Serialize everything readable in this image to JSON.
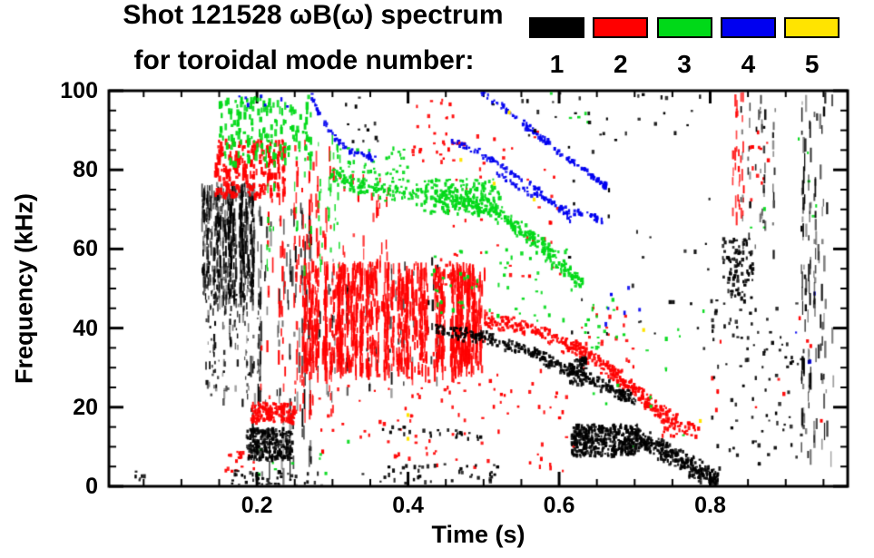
{
  "header": {
    "line1": "Shot 121528 ωB(ω) spectrum",
    "line2": "for toroidal mode number:",
    "legend": [
      {
        "label": "1",
        "color": "#000000"
      },
      {
        "label": "2",
        "color": "#ff0000"
      },
      {
        "label": "3",
        "color": "#00d918"
      },
      {
        "label": "4",
        "color": "#0000f0"
      },
      {
        "label": "5",
        "color": "#ffe400"
      }
    ]
  },
  "chart_data": {
    "type": "scatter",
    "title": "Shot 121528 ωB(ω) spectrum for toroidal mode number: 1-5",
    "xlabel": "Time (s)",
    "ylabel": "Frequency (kHz)",
    "xlim": [
      0.004,
      0.982
    ],
    "ylim": [
      0,
      100
    ],
    "x_major_ticks": [
      0.2,
      0.4,
      0.6,
      0.8
    ],
    "x_major_labels": [
      "0.2",
      "0.4",
      "0.6",
      "0.8"
    ],
    "x_minor_step": 0.05,
    "y_major_ticks": [
      0,
      20,
      40,
      60,
      80,
      100
    ],
    "y_major_labels": [
      "0",
      "20",
      "40",
      "60",
      "80",
      "100"
    ],
    "y_minor_step": 5,
    "grid": false,
    "legend_position": "top-right",
    "modes": {
      "1": "#000000",
      "2": "#ff0000",
      "3": "#00d918",
      "4": "#0000f0",
      "5": "#ffe400"
    },
    "features": [
      {
        "mode": 1,
        "kind": "vstreaks",
        "t": [
          0.128,
          0.195
        ],
        "f": [
          48,
          77
        ],
        "cols": 60,
        "runs": [
          5,
          13
        ],
        "len": [
          3,
          16
        ]
      },
      {
        "mode": 1,
        "kind": "vstreaks",
        "t": [
          0.13,
          0.205
        ],
        "f": [
          22,
          50
        ],
        "cols": 28,
        "runs": [
          2,
          6
        ],
        "len": [
          2,
          10
        ]
      },
      {
        "mode": 1,
        "kind": "vstreaks",
        "t": [
          0.19,
          0.275
        ],
        "f": [
          3,
          72
        ],
        "cols": 26,
        "runs": [
          3,
          8
        ],
        "len": [
          3,
          24
        ]
      },
      {
        "mode": 1,
        "kind": "vstreaks",
        "t": [
          0.28,
          0.46
        ],
        "f": [
          24,
          58
        ],
        "cols": 22,
        "runs": [
          2,
          6
        ],
        "len": [
          3,
          14
        ]
      },
      {
        "mode": 2,
        "kind": "scatter",
        "t": [
          0.143,
          0.235
        ],
        "f": [
          74,
          88
        ],
        "n": 210,
        "tall": true
      },
      {
        "mode": 2,
        "kind": "vstreaks",
        "t": [
          0.195,
          0.3
        ],
        "f": [
          18,
          88
        ],
        "cols": 30,
        "runs": [
          3,
          8
        ],
        "len": [
          4,
          18
        ]
      },
      {
        "mode": 2,
        "kind": "vstreaks",
        "t": [
          0.26,
          0.5
        ],
        "f": [
          30,
          57
        ],
        "cols": 130,
        "runs": [
          5,
          14
        ],
        "len": [
          4,
          20
        ]
      },
      {
        "mode": 2,
        "kind": "vstreaks",
        "t": [
          0.3,
          0.38
        ],
        "f": [
          45,
          80
        ],
        "cols": 12,
        "runs": [
          2,
          5
        ],
        "len": [
          4,
          14
        ]
      },
      {
        "mode": 2,
        "kind": "trace",
        "pts": [
          [
            0.5,
            42.5
          ],
          [
            0.54,
            41
          ],
          [
            0.58,
            38.5
          ],
          [
            0.61,
            36
          ],
          [
            0.64,
            33
          ],
          [
            0.665,
            30
          ],
          [
            0.69,
            26
          ],
          [
            0.71,
            22.5
          ],
          [
            0.73,
            19.5
          ],
          [
            0.755,
            16.5
          ]
        ],
        "w": 2.5,
        "n": 400
      },
      {
        "mode": 2,
        "kind": "scatter",
        "t": [
          0.19,
          0.25
        ],
        "f": [
          16.5,
          21.5
        ],
        "n": 140
      },
      {
        "mode": 2,
        "kind": "scatter",
        "t": [
          0.28,
          0.62
        ],
        "f": [
          4,
          30
        ],
        "n": 95
      },
      {
        "mode": 2,
        "kind": "scatter",
        "t": [
          0.44,
          0.6
        ],
        "f": [
          50,
          90
        ],
        "n": 55
      },
      {
        "mode": 2,
        "kind": "scatter",
        "t": [
          0.4,
          0.46
        ],
        "f": [
          82,
          100
        ],
        "n": 25
      },
      {
        "mode": 2,
        "kind": "scatter",
        "t": [
          0.155,
          0.195
        ],
        "f": [
          4,
          9
        ],
        "n": 18
      },
      {
        "mode": 2,
        "kind": "scatter",
        "t": [
          0.62,
          0.7
        ],
        "f": [
          30,
          46
        ],
        "n": 25
      },
      {
        "mode": 2,
        "kind": "scatter",
        "t": [
          0.735,
          0.785
        ],
        "f": [
          13,
          17
        ],
        "n": 32
      },
      {
        "mode": 2,
        "kind": "vstreaks",
        "t": [
          0.82,
          0.845
        ],
        "f": [
          68,
          100
        ],
        "cols": 6,
        "runs": [
          3,
          7
        ],
        "len": [
          5,
          16
        ]
      },
      {
        "mode": 2,
        "kind": "scatter",
        "t": [
          0.85,
          0.875
        ],
        "f": [
          72,
          90
        ],
        "n": 12
      },
      {
        "mode": 2,
        "kind": "scatter",
        "t": [
          0.8,
          0.96
        ],
        "f": [
          15,
          45
        ],
        "n": 12
      },
      {
        "mode": 3,
        "kind": "scatter",
        "t": [
          0.148,
          0.27
        ],
        "f": [
          82,
          99
        ],
        "n": 170,
        "tall": true
      },
      {
        "mode": 3,
        "kind": "vstreaks",
        "t": [
          0.21,
          0.31
        ],
        "f": [
          55,
          90
        ],
        "cols": 18,
        "runs": [
          2,
          5
        ],
        "len": [
          3,
          12
        ]
      },
      {
        "mode": 3,
        "kind": "trace",
        "pts": [
          [
            0.295,
            79
          ],
          [
            0.34,
            76
          ],
          [
            0.38,
            74.5
          ],
          [
            0.43,
            74
          ],
          [
            0.47,
            72.5
          ],
          [
            0.5,
            71
          ],
          [
            0.53,
            68
          ],
          [
            0.555,
            64
          ],
          [
            0.58,
            60
          ],
          [
            0.605,
            56
          ],
          [
            0.63,
            51
          ]
        ],
        "w": 2.8,
        "n": 430
      },
      {
        "mode": 3,
        "kind": "scatter",
        "t": [
          0.42,
          0.52
        ],
        "f": [
          69,
          78
        ],
        "n": 170
      },
      {
        "mode": 3,
        "kind": "scatter",
        "t": [
          0.3,
          0.4
        ],
        "f": [
          76,
          86
        ],
        "n": 55
      },
      {
        "mode": 3,
        "kind": "scatter",
        "t": [
          0.43,
          0.62
        ],
        "f": [
          42,
          62
        ],
        "n": 60
      },
      {
        "mode": 3,
        "kind": "scatter",
        "t": [
          0.63,
          0.675
        ],
        "f": [
          35,
          48
        ],
        "n": 18
      },
      {
        "mode": 3,
        "kind": "scatter",
        "t": [
          0.64,
          0.8
        ],
        "f": [
          10,
          45
        ],
        "n": 16
      },
      {
        "mode": 3,
        "kind": "scatter",
        "t": [
          0.85,
          0.95
        ],
        "f": [
          60,
          92
        ],
        "n": 8
      },
      {
        "mode": 3,
        "kind": "scatter",
        "t": [
          0.18,
          0.32
        ],
        "f": [
          2,
          12
        ],
        "n": 10
      },
      {
        "mode": 3,
        "kind": "scatter",
        "t": [
          0.58,
          0.64
        ],
        "f": [
          92,
          100
        ],
        "n": 5
      },
      {
        "mode": 4,
        "kind": "trace",
        "pts": [
          [
            0.27,
            99
          ],
          [
            0.285,
            93
          ],
          [
            0.305,
            87.5
          ],
          [
            0.325,
            84.5
          ],
          [
            0.355,
            83.5
          ]
        ],
        "w": 1.0,
        "n": 55
      },
      {
        "mode": 4,
        "kind": "trace",
        "pts": [
          [
            0.495,
            100
          ],
          [
            0.525,
            96
          ],
          [
            0.555,
            91.5
          ],
          [
            0.585,
            87
          ],
          [
            0.615,
            82.5
          ],
          [
            0.645,
            78.5
          ],
          [
            0.662,
            76
          ]
        ],
        "w": 1.0,
        "n": 110
      },
      {
        "mode": 4,
        "kind": "trace",
        "pts": [
          [
            0.455,
            88
          ],
          [
            0.49,
            85
          ],
          [
            0.52,
            81.5
          ],
          [
            0.55,
            78
          ],
          [
            0.575,
            74.5
          ],
          [
            0.6,
            70.5
          ],
          [
            0.617,
            67.5
          ]
        ],
        "w": 1.0,
        "n": 85
      },
      {
        "mode": 4,
        "kind": "trace",
        "pts": [
          [
            0.515,
            80
          ],
          [
            0.55,
            75.5
          ],
          [
            0.59,
            72
          ],
          [
            0.625,
            69.5
          ],
          [
            0.655,
            67.5
          ]
        ],
        "w": 1.0,
        "n": 60
      },
      {
        "mode": 4,
        "kind": "scatter",
        "t": [
          0.17,
          0.25
        ],
        "f": [
          96,
          100
        ],
        "n": 7
      },
      {
        "mode": 4,
        "kind": "scatter",
        "t": [
          0.66,
          0.71
        ],
        "f": [
          40,
          52
        ],
        "n": 6
      },
      {
        "mode": 4,
        "kind": "scatter",
        "t": [
          0.9,
          0.945
        ],
        "f": [
          30,
          52
        ],
        "n": 4
      },
      {
        "mode": 1,
        "kind": "scatter",
        "t": [
          0.185,
          0.245
        ],
        "f": [
          7,
          15
        ],
        "n": 240
      },
      {
        "mode": 1,
        "kind": "scatter",
        "t": [
          0.165,
          0.285
        ],
        "f": [
          0.5,
          4.5
        ],
        "n": 45
      },
      {
        "mode": 1,
        "kind": "trace",
        "pts": [
          [
            0.36,
            15
          ],
          [
            0.44,
            14
          ],
          [
            0.51,
            12.5
          ]
        ],
        "w": 1.2,
        "n": 26
      },
      {
        "mode": 1,
        "kind": "scatter",
        "t": [
          0.33,
          0.52
        ],
        "f": [
          1,
          6
        ],
        "n": 40
      },
      {
        "mode": 1,
        "kind": "scatter",
        "t": [
          0.315,
          0.36
        ],
        "f": [
          85,
          100
        ],
        "n": 12
      },
      {
        "mode": 1,
        "kind": "scatter",
        "t": [
          0.5,
          0.6
        ],
        "f": [
          85,
          100
        ],
        "n": 9
      },
      {
        "mode": 1,
        "kind": "trace",
        "pts": [
          [
            0.435,
            40
          ],
          [
            0.47,
            39
          ],
          [
            0.5,
            38
          ],
          [
            0.53,
            36.5
          ],
          [
            0.56,
            34.5
          ],
          [
            0.59,
            32
          ],
          [
            0.615,
            29.5
          ],
          [
            0.645,
            27
          ],
          [
            0.675,
            24.5
          ],
          [
            0.7,
            22
          ]
        ],
        "w": 2.0,
        "n": 330
      },
      {
        "mode": 1,
        "kind": "scatter",
        "t": [
          0.612,
          0.634
        ],
        "f": [
          26,
          33
        ],
        "n": 60
      },
      {
        "mode": 1,
        "kind": "scatter",
        "t": [
          0.615,
          0.705
        ],
        "f": [
          8,
          16
        ],
        "n": 400
      },
      {
        "mode": 1,
        "kind": "trace",
        "pts": [
          [
            0.7,
            13
          ],
          [
            0.73,
            10
          ],
          [
            0.755,
            7.5
          ],
          [
            0.78,
            4.5
          ],
          [
            0.81,
            1.5
          ]
        ],
        "w": 3.2,
        "n": 300
      },
      {
        "mode": 1,
        "kind": "scatter",
        "t": [
          0.6,
          0.8
        ],
        "f": [
          35,
          78
        ],
        "n": 26
      },
      {
        "mode": 1,
        "kind": "scatter",
        "t": [
          0.6,
          0.79
        ],
        "f": [
          80,
          100
        ],
        "n": 22
      },
      {
        "mode": 1,
        "kind": "scatter",
        "t": [
          0.815,
          0.855
        ],
        "f": [
          48,
          63
        ],
        "n": 95
      },
      {
        "mode": 1,
        "kind": "vstreaks",
        "t": [
          0.84,
          0.885
        ],
        "f": [
          58,
          100
        ],
        "cols": 13,
        "runs": [
          2,
          6
        ],
        "len": [
          3,
          12
        ]
      },
      {
        "mode": 1,
        "kind": "scatter",
        "t": [
          0.8,
          0.92
        ],
        "f": [
          5,
          48
        ],
        "n": 90
      },
      {
        "mode": 1,
        "kind": "vstreaks",
        "t": [
          0.92,
          0.965
        ],
        "f": [
          8,
          100
        ],
        "cols": 17,
        "runs": [
          4,
          10
        ],
        "len": [
          4,
          20
        ]
      },
      {
        "mode": 1,
        "kind": "scatter",
        "t": [
          0.035,
          0.055
        ],
        "f": [
          1.5,
          4
        ],
        "n": 6
      },
      {
        "mode": 5,
        "kind": "points",
        "pts": [
          [
            0.468,
            83
          ],
          [
            0.532,
            95
          ],
          [
            0.512,
            77
          ],
          [
            0.565,
            73
          ],
          [
            0.398,
            18.5
          ],
          [
            0.398,
            12.5
          ],
          [
            0.71,
            40
          ],
          [
            0.785,
            17
          ]
        ]
      }
    ]
  }
}
